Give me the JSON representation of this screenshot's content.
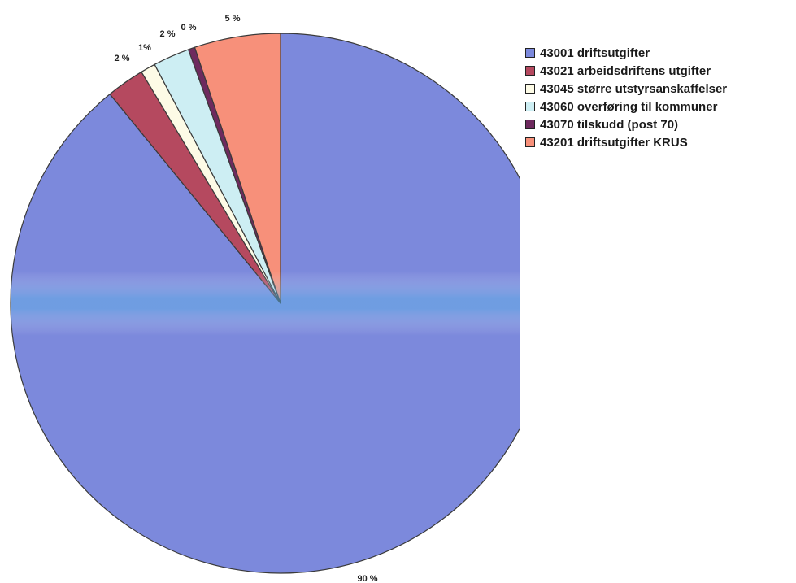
{
  "chart_data": {
    "type": "pie",
    "title": "",
    "legend_position": "right",
    "slices": [
      {
        "label": "43001 driftsutgifter",
        "value": 90,
        "value_label": "90 %",
        "color": "#7c89dc"
      },
      {
        "label": "43021 arbeidsdriftens utgifter",
        "value": 2.3,
        "value_label": "2 %",
        "color": "#b5495f"
      },
      {
        "label": "43045 større utstyrsanskaffelser",
        "value": 0.9,
        "value_label": "1%",
        "color": "#fdfbe6"
      },
      {
        "label": "43060 overføring til kommuner",
        "value": 2.2,
        "value_label": "2 %",
        "color": "#cdeef3"
      },
      {
        "label": "43070 tilskudd (post 70)",
        "value": 0.4,
        "value_label": "0 %",
        "color": "#6e2a5e"
      },
      {
        "label": "43201 driftsutgifter KRUS",
        "value": 5.2,
        "value_label": "5 %",
        "color": "#f7907a"
      }
    ]
  }
}
